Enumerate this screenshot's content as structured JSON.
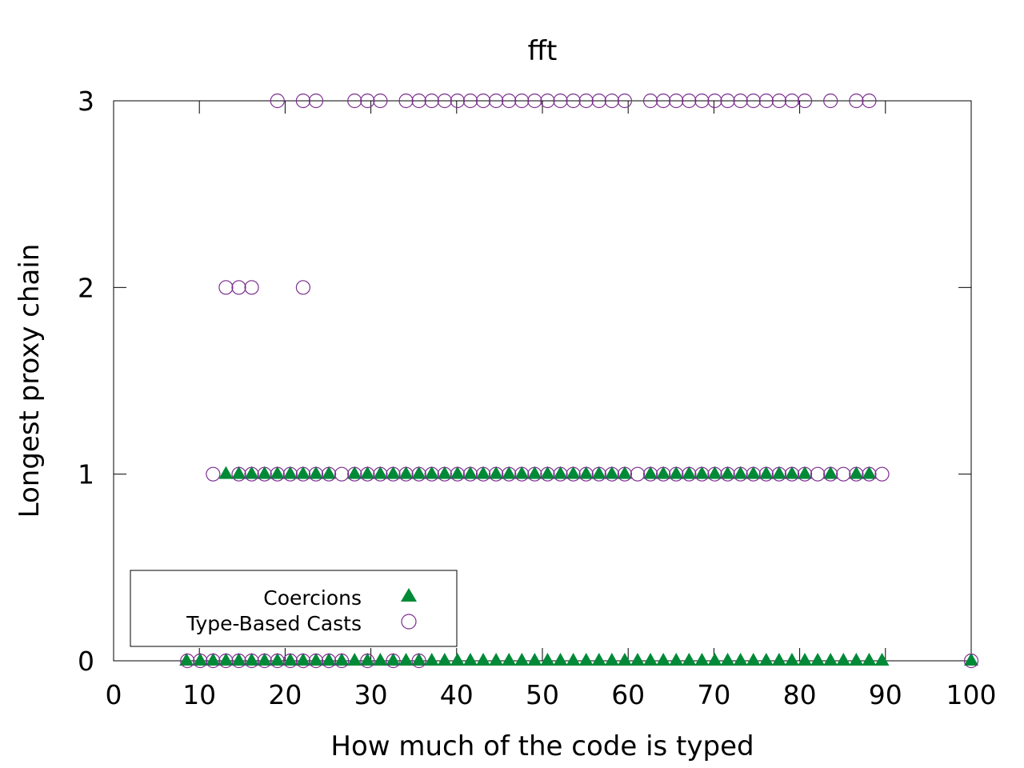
{
  "chart_data": {
    "type": "scatter",
    "title": "fft",
    "xlabel": "How much of the code is typed",
    "ylabel": "Longest proxy chain",
    "xlim": [
      0,
      100
    ],
    "ylim": [
      0,
      3
    ],
    "x_ticks": [
      "0",
      "10",
      "20",
      "30",
      "40",
      "50",
      "60",
      "70",
      "80",
      "90",
      "100"
    ],
    "y_ticks": [
      "0",
      "1",
      "2",
      "3"
    ],
    "grid": false,
    "legend_position": "bottom-left",
    "series": [
      {
        "name": "Coercions",
        "marker": "filled-triangle",
        "color": "#008a37",
        "points": [
          [
            8.5,
            0
          ],
          [
            10.1,
            0
          ],
          [
            11.6,
            0
          ],
          [
            13.1,
            0
          ],
          [
            14.6,
            0
          ],
          [
            16.1,
            0
          ],
          [
            17.6,
            0
          ],
          [
            19.1,
            0
          ],
          [
            20.6,
            0
          ],
          [
            22.1,
            0
          ],
          [
            23.6,
            0
          ],
          [
            25.1,
            0
          ],
          [
            26.6,
            0
          ],
          [
            28.1,
            0
          ],
          [
            29.6,
            0
          ],
          [
            31.1,
            0
          ],
          [
            32.6,
            0
          ],
          [
            34.1,
            0
          ],
          [
            35.6,
            0
          ],
          [
            37.1,
            0
          ],
          [
            38.6,
            0
          ],
          [
            40.1,
            0
          ],
          [
            41.6,
            0
          ],
          [
            43.1,
            0
          ],
          [
            44.6,
            0
          ],
          [
            46.1,
            0
          ],
          [
            47.6,
            0
          ],
          [
            49.1,
            0
          ],
          [
            50.6,
            0
          ],
          [
            52.1,
            0
          ],
          [
            53.6,
            0
          ],
          [
            55.1,
            0
          ],
          [
            56.6,
            0
          ],
          [
            58.1,
            0
          ],
          [
            59.6,
            0
          ],
          [
            61.1,
            0
          ],
          [
            62.6,
            0
          ],
          [
            64.1,
            0
          ],
          [
            65.6,
            0
          ],
          [
            67.1,
            0
          ],
          [
            68.6,
            0
          ],
          [
            70.1,
            0
          ],
          [
            71.6,
            0
          ],
          [
            73.1,
            0
          ],
          [
            74.6,
            0
          ],
          [
            76.1,
            0
          ],
          [
            77.6,
            0
          ],
          [
            79.1,
            0
          ],
          [
            80.6,
            0
          ],
          [
            82.1,
            0
          ],
          [
            83.6,
            0
          ],
          [
            85.1,
            0
          ],
          [
            86.6,
            0
          ],
          [
            88.1,
            0
          ],
          [
            89.6,
            0
          ],
          [
            100,
            0
          ],
          [
            13.1,
            1
          ],
          [
            14.6,
            1
          ],
          [
            16.1,
            1
          ],
          [
            17.6,
            1
          ],
          [
            19.1,
            1
          ],
          [
            20.6,
            1
          ],
          [
            22.1,
            1
          ],
          [
            23.6,
            1
          ],
          [
            25.1,
            1
          ],
          [
            28.1,
            1
          ],
          [
            29.6,
            1
          ],
          [
            31.1,
            1
          ],
          [
            32.6,
            1
          ],
          [
            34.1,
            1
          ],
          [
            35.6,
            1
          ],
          [
            37.1,
            1
          ],
          [
            38.6,
            1
          ],
          [
            40.1,
            1
          ],
          [
            41.6,
            1
          ],
          [
            43.1,
            1
          ],
          [
            44.6,
            1
          ],
          [
            46.1,
            1
          ],
          [
            47.6,
            1
          ],
          [
            49.1,
            1
          ],
          [
            50.6,
            1
          ],
          [
            52.1,
            1
          ],
          [
            53.6,
            1
          ],
          [
            55.1,
            1
          ],
          [
            56.6,
            1
          ],
          [
            58.1,
            1
          ],
          [
            59.6,
            1
          ],
          [
            62.6,
            1
          ],
          [
            64.1,
            1
          ],
          [
            65.6,
            1
          ],
          [
            67.1,
            1
          ],
          [
            68.6,
            1
          ],
          [
            70.1,
            1
          ],
          [
            71.6,
            1
          ],
          [
            73.1,
            1
          ],
          [
            74.6,
            1
          ],
          [
            76.1,
            1
          ],
          [
            77.6,
            1
          ],
          [
            79.1,
            1
          ],
          [
            80.6,
            1
          ],
          [
            83.6,
            1
          ],
          [
            86.6,
            1
          ],
          [
            88.1,
            1
          ]
        ]
      },
      {
        "name": "Type-Based Casts",
        "marker": "open-circle",
        "color": "#7b2d8e",
        "points": [
          [
            8.6,
            0
          ],
          [
            10.1,
            0
          ],
          [
            11.6,
            0
          ],
          [
            13.1,
            0
          ],
          [
            14.6,
            0
          ],
          [
            16.1,
            0
          ],
          [
            17.6,
            0
          ],
          [
            19.1,
            0
          ],
          [
            20.6,
            0
          ],
          [
            22.1,
            0
          ],
          [
            23.6,
            0
          ],
          [
            25.1,
            0
          ],
          [
            26.6,
            0
          ],
          [
            29.6,
            0
          ],
          [
            32.6,
            0
          ],
          [
            35.6,
            0
          ],
          [
            100,
            0
          ],
          [
            11.6,
            1
          ],
          [
            14.6,
            1
          ],
          [
            16.1,
            1
          ],
          [
            17.6,
            1
          ],
          [
            19.1,
            1
          ],
          [
            20.6,
            1
          ],
          [
            22.1,
            1
          ],
          [
            23.6,
            1
          ],
          [
            25.1,
            1
          ],
          [
            26.6,
            1
          ],
          [
            28.1,
            1
          ],
          [
            29.6,
            1
          ],
          [
            31.1,
            1
          ],
          [
            32.6,
            1
          ],
          [
            34.1,
            1
          ],
          [
            35.6,
            1
          ],
          [
            37.1,
            1
          ],
          [
            38.6,
            1
          ],
          [
            40.1,
            1
          ],
          [
            41.6,
            1
          ],
          [
            43.1,
            1
          ],
          [
            44.6,
            1
          ],
          [
            46.1,
            1
          ],
          [
            47.6,
            1
          ],
          [
            49.1,
            1
          ],
          [
            50.6,
            1
          ],
          [
            52.1,
            1
          ],
          [
            53.6,
            1
          ],
          [
            55.1,
            1
          ],
          [
            56.6,
            1
          ],
          [
            58.1,
            1
          ],
          [
            59.6,
            1
          ],
          [
            61.1,
            1
          ],
          [
            62.6,
            1
          ],
          [
            64.1,
            1
          ],
          [
            65.6,
            1
          ],
          [
            67.1,
            1
          ],
          [
            68.6,
            1
          ],
          [
            70.1,
            1
          ],
          [
            71.6,
            1
          ],
          [
            73.1,
            1
          ],
          [
            74.6,
            1
          ],
          [
            76.1,
            1
          ],
          [
            77.6,
            1
          ],
          [
            79.1,
            1
          ],
          [
            80.6,
            1
          ],
          [
            82.1,
            1
          ],
          [
            83.6,
            1
          ],
          [
            85.1,
            1
          ],
          [
            86.6,
            1
          ],
          [
            88.1,
            1
          ],
          [
            89.6,
            1
          ],
          [
            13.1,
            2
          ],
          [
            14.6,
            2
          ],
          [
            16.1,
            2
          ],
          [
            22.1,
            2
          ],
          [
            19.1,
            3
          ],
          [
            22.1,
            3
          ],
          [
            23.6,
            3
          ],
          [
            28.1,
            3
          ],
          [
            29.6,
            3
          ],
          [
            31.1,
            3
          ],
          [
            34.1,
            3
          ],
          [
            35.6,
            3
          ],
          [
            37.1,
            3
          ],
          [
            38.6,
            3
          ],
          [
            40.1,
            3
          ],
          [
            41.6,
            3
          ],
          [
            43.1,
            3
          ],
          [
            44.6,
            3
          ],
          [
            46.1,
            3
          ],
          [
            47.6,
            3
          ],
          [
            49.1,
            3
          ],
          [
            50.6,
            3
          ],
          [
            52.1,
            3
          ],
          [
            53.6,
            3
          ],
          [
            55.1,
            3
          ],
          [
            56.6,
            3
          ],
          [
            58.1,
            3
          ],
          [
            59.6,
            3
          ],
          [
            62.6,
            3
          ],
          [
            64.1,
            3
          ],
          [
            65.6,
            3
          ],
          [
            67.1,
            3
          ],
          [
            68.6,
            3
          ],
          [
            70.1,
            3
          ],
          [
            71.6,
            3
          ],
          [
            73.1,
            3
          ],
          [
            74.6,
            3
          ],
          [
            76.1,
            3
          ],
          [
            77.6,
            3
          ],
          [
            79.1,
            3
          ],
          [
            80.6,
            3
          ],
          [
            83.6,
            3
          ],
          [
            86.6,
            3
          ],
          [
            88.1,
            3
          ]
        ]
      }
    ]
  }
}
